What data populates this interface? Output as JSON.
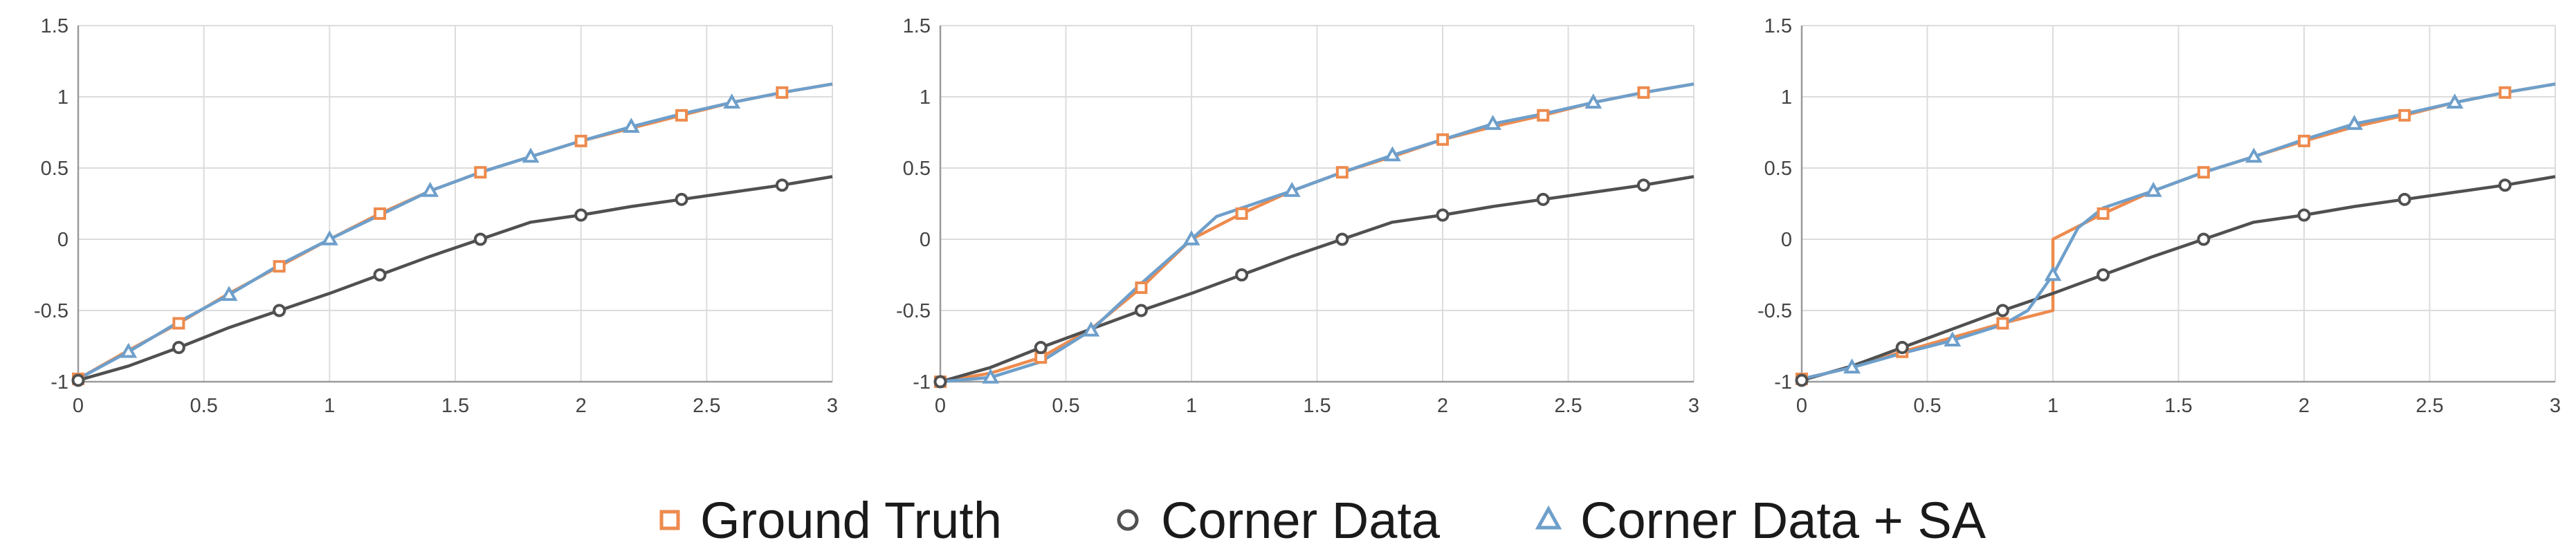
{
  "legend": [
    {
      "label": "Ground Truth",
      "color": "#ED8B4E",
      "marker": "square"
    },
    {
      "label": "Corner Data",
      "color": "#505050",
      "marker": "circle"
    },
    {
      "label": "Corner Data + SA",
      "color": "#6E9FCB",
      "marker": "triangle"
    }
  ],
  "chart_data": [
    {
      "type": "line",
      "title": "",
      "xlabel": "",
      "ylabel": "",
      "xlim": [
        0,
        3
      ],
      "ylim": [
        -1,
        1.5
      ],
      "xticks": [
        "0",
        "0.5",
        "1",
        "1.5",
        "2",
        "2.5",
        "3"
      ],
      "yticks": [
        "-1",
        "-0.5",
        "0",
        "0.5",
        "1",
        "1.5"
      ],
      "grid": true,
      "series": [
        {
          "name": "Ground Truth",
          "color": "#ED8B4E",
          "marker": "square",
          "x": [
            0,
            0.2,
            0.4,
            0.6,
            0.8,
            1.0,
            1.2,
            1.4,
            1.6,
            1.8,
            2.0,
            2.2,
            2.4,
            2.6,
            2.8,
            3.0
          ],
          "y": [
            -0.98,
            -0.78,
            -0.59,
            -0.38,
            -0.19,
            0.0,
            0.18,
            0.34,
            0.47,
            0.58,
            0.69,
            0.78,
            0.87,
            0.96,
            1.03,
            1.09
          ],
          "marker_x": [
            0,
            0.4,
            0.8,
            1.2,
            1.6,
            2.0,
            2.4,
            2.8
          ]
        },
        {
          "name": "Corner Data",
          "color": "#505050",
          "marker": "circle",
          "x": [
            0,
            0.2,
            0.4,
            0.6,
            0.8,
            1.0,
            1.2,
            1.4,
            1.6,
            1.8,
            2.0,
            2.2,
            2.4,
            2.6,
            2.8,
            3.0
          ],
          "y": [
            -0.99,
            -0.89,
            -0.76,
            -0.62,
            -0.5,
            -0.38,
            -0.25,
            -0.12,
            0.0,
            0.12,
            0.17,
            0.23,
            0.28,
            0.33,
            0.38,
            0.44
          ],
          "marker_x": [
            0,
            0.4,
            0.8,
            1.2,
            1.6,
            2.0,
            2.4,
            2.8
          ]
        },
        {
          "name": "Corner Data + SA",
          "color": "#6E9FCB",
          "marker": "triangle",
          "x": [
            0,
            0.2,
            0.4,
            0.6,
            0.8,
            1.0,
            1.2,
            1.4,
            1.6,
            1.8,
            2.0,
            2.2,
            2.4,
            2.6,
            2.8,
            3.0
          ],
          "y": [
            -0.98,
            -0.79,
            -0.58,
            -0.39,
            -0.18,
            0.0,
            0.17,
            0.34,
            0.47,
            0.58,
            0.69,
            0.79,
            0.88,
            0.96,
            1.03,
            1.09
          ],
          "marker_x": [
            0.2,
            0.6,
            1.0,
            1.4,
            1.8,
            2.2,
            2.6
          ]
        }
      ]
    },
    {
      "type": "line",
      "title": "",
      "xlabel": "",
      "ylabel": "",
      "xlim": [
        0,
        3
      ],
      "ylim": [
        -1,
        1.5
      ],
      "xticks": [
        "0",
        "0.5",
        "1",
        "1.5",
        "2",
        "2.5",
        "3"
      ],
      "yticks": [
        "-1",
        "-0.5",
        "0",
        "0.5",
        "1",
        "1.5"
      ],
      "grid": true,
      "series": [
        {
          "name": "Ground Truth",
          "color": "#ED8B4E",
          "marker": "square",
          "x": [
            0,
            0.2,
            0.4,
            0.6,
            0.8,
            1.0,
            1.2,
            1.4,
            1.6,
            1.8,
            2.0,
            2.2,
            2.4,
            2.6,
            2.8,
            3.0
          ],
          "y": [
            -1.0,
            -0.94,
            -0.83,
            -0.63,
            -0.34,
            0.0,
            0.18,
            0.34,
            0.47,
            0.58,
            0.7,
            0.79,
            0.87,
            0.96,
            1.03,
            1.09
          ],
          "marker_x": [
            0,
            0.4,
            0.8,
            1.2,
            1.6,
            2.0,
            2.4,
            2.8
          ]
        },
        {
          "name": "Corner Data",
          "color": "#505050",
          "marker": "circle",
          "x": [
            0,
            0.2,
            0.4,
            0.6,
            0.8,
            1.0,
            1.2,
            1.4,
            1.6,
            1.8,
            2.0,
            2.2,
            2.4,
            2.6,
            2.8,
            3.0
          ],
          "y": [
            -1.0,
            -0.9,
            -0.76,
            -0.63,
            -0.5,
            -0.38,
            -0.25,
            -0.12,
            0.0,
            0.12,
            0.17,
            0.23,
            0.28,
            0.33,
            0.38,
            0.44
          ],
          "marker_x": [
            0,
            0.4,
            0.8,
            1.2,
            1.6,
            2.0,
            2.4,
            2.8
          ]
        },
        {
          "name": "Corner Data + SA",
          "color": "#6E9FCB",
          "marker": "triangle",
          "x": [
            0,
            0.2,
            0.4,
            0.6,
            0.8,
            1.0,
            1.1,
            1.2,
            1.4,
            1.6,
            1.8,
            2.0,
            2.2,
            2.4,
            2.6,
            2.8,
            3.0
          ],
          "y": [
            -1.0,
            -0.97,
            -0.86,
            -0.64,
            -0.31,
            0.0,
            0.16,
            0.22,
            0.34,
            0.47,
            0.59,
            0.7,
            0.81,
            0.88,
            0.96,
            1.03,
            1.09
          ],
          "marker_x": [
            0.2,
            0.6,
            1.0,
            1.4,
            1.8,
            2.2,
            2.6
          ]
        }
      ]
    },
    {
      "type": "line",
      "title": "",
      "xlabel": "",
      "ylabel": "",
      "xlim": [
        0,
        3
      ],
      "ylim": [
        -1,
        1.5
      ],
      "xticks": [
        "0",
        "0.5",
        "1",
        "1.5",
        "2",
        "2.5",
        "3"
      ],
      "yticks": [
        "-1",
        "-0.5",
        "0",
        "0.5",
        "1",
        "1.5"
      ],
      "grid": true,
      "series": [
        {
          "name": "Ground Truth",
          "color": "#ED8B4E",
          "marker": "square",
          "x": [
            0,
            0.2,
            0.4,
            0.6,
            0.8,
            1.0,
            1.0,
            1.2,
            1.4,
            1.6,
            1.8,
            2.0,
            2.2,
            2.4,
            2.6,
            2.8,
            3.0
          ],
          "y": [
            -0.98,
            -0.9,
            -0.79,
            -0.69,
            -0.59,
            -0.5,
            0.0,
            0.18,
            0.34,
            0.47,
            0.58,
            0.69,
            0.79,
            0.87,
            0.96,
            1.03,
            1.09
          ],
          "marker_x": [
            0,
            0.4,
            0.8,
            1.2,
            1.6,
            2.0,
            2.4,
            2.8
          ]
        },
        {
          "name": "Corner Data",
          "color": "#505050",
          "marker": "circle",
          "x": [
            0,
            0.2,
            0.4,
            0.6,
            0.8,
            1.0,
            1.2,
            1.4,
            1.6,
            1.8,
            2.0,
            2.2,
            2.4,
            2.6,
            2.8,
            3.0
          ],
          "y": [
            -0.99,
            -0.89,
            -0.76,
            -0.63,
            -0.5,
            -0.38,
            -0.25,
            -0.12,
            0.0,
            0.12,
            0.17,
            0.23,
            0.28,
            0.33,
            0.38,
            0.44
          ],
          "marker_x": [
            0,
            0.4,
            0.8,
            1.2,
            1.6,
            2.0,
            2.4,
            2.8
          ]
        },
        {
          "name": "Corner Data + SA",
          "color": "#6E9FCB",
          "marker": "triangle",
          "x": [
            0,
            0.2,
            0.4,
            0.6,
            0.8,
            0.9,
            1.0,
            1.1,
            1.2,
            1.4,
            1.6,
            1.8,
            2.0,
            2.2,
            2.4,
            2.6,
            2.8,
            3.0
          ],
          "y": [
            -0.98,
            -0.9,
            -0.8,
            -0.71,
            -0.6,
            -0.5,
            -0.25,
            0.08,
            0.22,
            0.34,
            0.47,
            0.58,
            0.7,
            0.81,
            0.88,
            0.96,
            1.03,
            1.09
          ],
          "marker_x": [
            0.2,
            0.6,
            1.0,
            1.4,
            1.8,
            2.2,
            2.6
          ]
        }
      ]
    }
  ]
}
